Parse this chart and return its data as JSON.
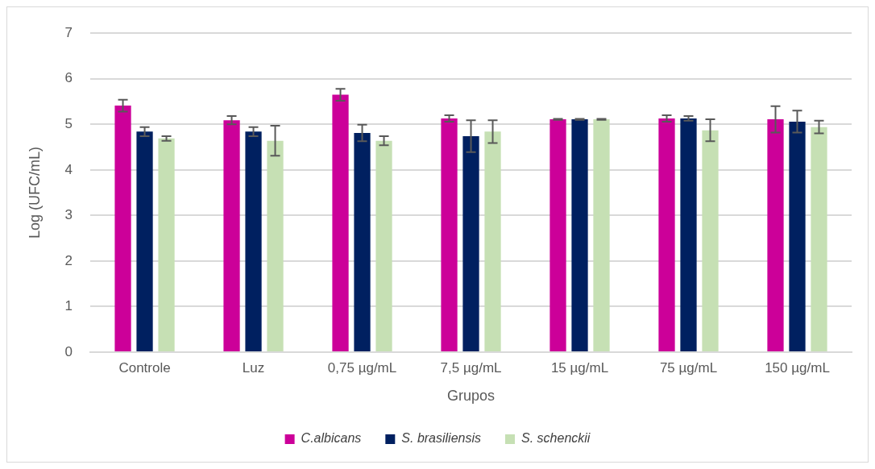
{
  "chart_data": {
    "type": "bar",
    "xlabel": "Grupos",
    "ylabel": "Log (UFC/mL)",
    "categories": [
      "Controle",
      "Luz",
      "0,75 µg/mL",
      "7,5 µg/mL",
      "15 µg/mL",
      "75 µg/mL",
      "150 µg/mL"
    ],
    "series": [
      {
        "name": "C.albicans",
        "color": "#cc0099",
        "values": [
          5.41,
          5.09,
          5.65,
          5.13,
          5.11,
          5.13,
          5.11
        ],
        "errors": [
          0.13,
          0.09,
          0.13,
          0.07,
          0.01,
          0.07,
          0.29
        ]
      },
      {
        "name": "S. brasiliensis",
        "color": "#002060",
        "values": [
          4.84,
          4.84,
          4.81,
          4.74,
          5.11,
          5.13,
          5.06
        ],
        "errors": [
          0.1,
          0.1,
          0.18,
          0.35,
          0.01,
          0.05,
          0.24
        ]
      },
      {
        "name": "S. schenckii",
        "color": "#c6e0b4",
        "values": [
          4.69,
          4.64,
          4.64,
          4.84,
          5.11,
          4.87,
          4.94
        ],
        "errors": [
          0.05,
          0.33,
          0.1,
          0.25,
          0.01,
          0.24,
          0.14
        ]
      }
    ],
    "ylim": [
      0,
      7
    ],
    "yticks": [
      0,
      1,
      2,
      3,
      4,
      5,
      6,
      7
    ],
    "grid": "y",
    "legend": "bottom"
  }
}
